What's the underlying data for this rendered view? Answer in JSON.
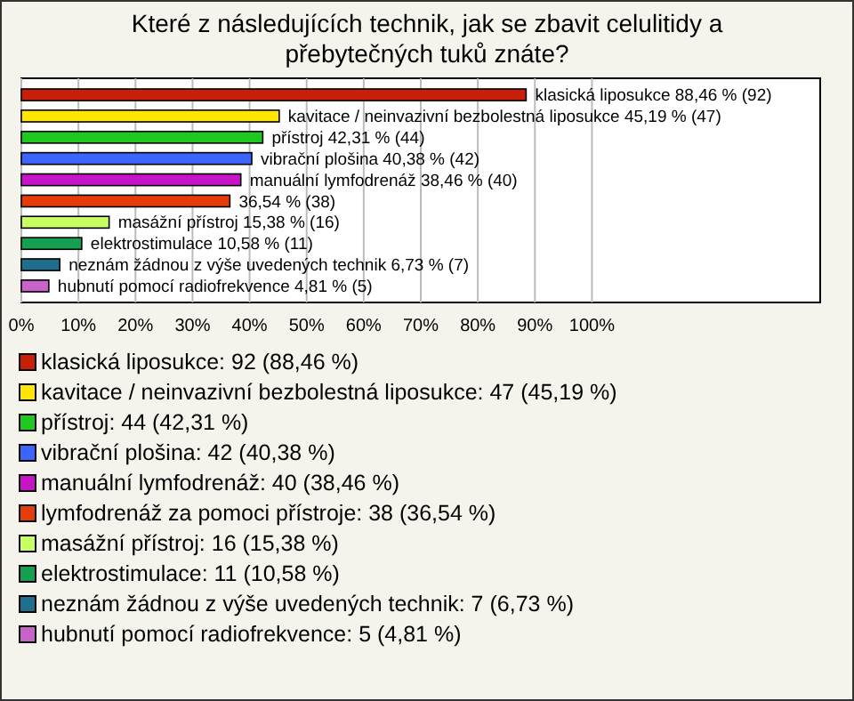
{
  "chart_data": {
    "type": "bar",
    "orientation": "horizontal",
    "title": "Které z následujících technik, jak se zbavit celulitidy a přebytečných tuků znáte?",
    "categories": [
      null,
      null,
      null,
      null,
      null,
      null,
      null,
      null,
      null,
      null
    ],
    "series": [
      {
        "name": "klasická liposukce: 92 (88,46 %)",
        "color": "#c81e0a",
        "values": [
          88.46,
          null,
          null,
          null,
          null,
          null,
          null,
          null,
          null,
          null
        ],
        "value_labels": [
          "klasická liposukce 88,46 % (92)",
          null,
          null,
          null,
          null,
          null,
          null,
          null,
          null,
          null
        ]
      },
      {
        "name": "kavitace / neinvazivní bezbolestná liposukce: 47 (45,19 %)",
        "color": "#ffe600",
        "values": [
          null,
          45.19,
          null,
          null,
          null,
          null,
          null,
          null,
          null,
          null
        ],
        "value_labels": [
          null,
          "kavitace / neinvazivní bezbolestná liposukce 45,19 % (47)",
          null,
          null,
          null,
          null,
          null,
          null,
          null,
          null
        ]
      },
      {
        "name": "přístroj: 44 (42,31 %)",
        "color": "#1ec81e",
        "values": [
          null,
          null,
          42.31,
          null,
          null,
          null,
          null,
          null,
          null,
          null
        ],
        "value_labels": [
          null,
          null,
          "přístroj 42,31 % (44)",
          null,
          null,
          null,
          null,
          null,
          null,
          null
        ]
      },
      {
        "name": "vibrační plošina: 42 (40,38 %)",
        "color": "#3c64ff",
        "values": [
          null,
          null,
          null,
          40.38,
          null,
          null,
          null,
          null,
          null,
          null
        ],
        "value_labels": [
          null,
          null,
          null,
          "vibrační plošina 40,38 % (42)",
          null,
          null,
          null,
          null,
          null,
          null
        ]
      },
      {
        "name": "manuální lymfodrenáž: 40 (38,46 %)",
        "color": "#c814c8",
        "values": [
          null,
          null,
          null,
          null,
          38.46,
          null,
          null,
          null,
          null,
          null
        ],
        "value_labels": [
          null,
          null,
          null,
          null,
          "manuální lymfodrenáž 38,46 % (40)",
          null,
          null,
          null,
          null,
          null
        ]
      },
      {
        "name": "lymfodrenáž za pomoci přístroje: 38 (36,54 %)",
        "color": "#e63c0a",
        "values": [
          null,
          null,
          null,
          null,
          null,
          36.54,
          null,
          null,
          null,
          null
        ],
        "value_labels": [
          null,
          null,
          null,
          null,
          null,
          "36,54 % (38)",
          null,
          null,
          null,
          null
        ]
      },
      {
        "name": "masážní přístroj: 16 (15,38 %)",
        "color": "#c8ff64",
        "values": [
          null,
          null,
          null,
          null,
          null,
          null,
          15.38,
          null,
          null,
          null
        ],
        "value_labels": [
          null,
          null,
          null,
          null,
          null,
          null,
          "masážní přístroj 15,38 % (16)",
          null,
          null,
          null
        ]
      },
      {
        "name": "elektrostimulace: 11 (10,58 %)",
        "color": "#14a050",
        "values": [
          null,
          null,
          null,
          null,
          null,
          null,
          null,
          10.58,
          null,
          null
        ],
        "value_labels": [
          null,
          null,
          null,
          null,
          null,
          null,
          null,
          "elektrostimulace 10,58 % (11)",
          null,
          null
        ]
      },
      {
        "name": "neznám žádnou z výše uvedených technik: 7 (6,73 %)",
        "color": "#1e6e8c",
        "values": [
          null,
          null,
          null,
          null,
          null,
          null,
          null,
          null,
          6.73,
          null
        ],
        "value_labels": [
          null,
          null,
          null,
          null,
          null,
          null,
          null,
          null,
          "neznám žádnou z výše uvedených technik 6,73 % (7)",
          null
        ]
      },
      {
        "name": "hubnutí pomocí radiofrekvence: 5 (4,81 %)",
        "color": "#c864c8",
        "values": [
          null,
          null,
          null,
          null,
          null,
          null,
          null,
          null,
          null,
          4.81
        ],
        "value_labels": [
          null,
          null,
          null,
          null,
          null,
          null,
          null,
          null,
          null,
          "hubnutí pomocí radiofrekvence 4,81 % (5)"
        ]
      }
    ],
    "xlim": [
      0,
      140
    ],
    "xticks": [
      {
        "value": 0,
        "label": "0%"
      },
      {
        "value": 10,
        "label": "10%"
      },
      {
        "value": 20,
        "label": "20%"
      },
      {
        "value": 30,
        "label": "30%"
      },
      {
        "value": 40,
        "label": "40%"
      },
      {
        "value": 50,
        "label": "50%"
      },
      {
        "value": 60,
        "label": "60%"
      },
      {
        "value": 70,
        "label": "70%"
      },
      {
        "value": 80,
        "label": "80%"
      },
      {
        "value": 90,
        "label": "90%"
      },
      {
        "value": 100,
        "label": "100%"
      }
    ],
    "grid": "x",
    "legend": "bottom"
  }
}
